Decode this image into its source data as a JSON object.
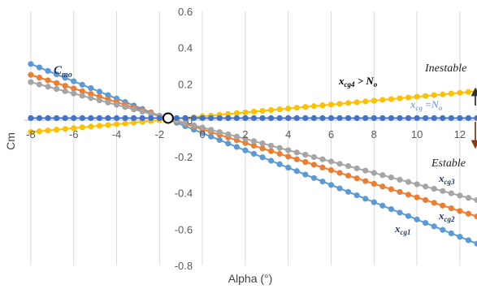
{
  "chart_data": {
    "type": "line",
    "xlabel": "Alpha (°)",
    "ylabel": "Cm",
    "xlim": [
      -8.3,
      12.8
    ],
    "ylim": [
      -0.8,
      0.6
    ],
    "x_ticks": [
      -8,
      -6,
      -4,
      -2,
      0,
      2,
      4,
      6,
      8,
      10,
      12
    ],
    "y_ticks": [
      -0.8,
      -0.6,
      -0.4,
      -0.2,
      0,
      0.2,
      0.4,
      0.6
    ],
    "x_tick_labels": [
      "-8",
      "-6",
      "-4",
      "-2",
      "0",
      "2",
      "4",
      "6",
      "8",
      "10",
      "12"
    ],
    "y_tick_labels": [
      "-0.8",
      "-0.6",
      "-0.4",
      "-0.2",
      "0",
      "0.2",
      "0.4",
      "0.6"
    ],
    "gridlines": "vertical",
    "marker_spacing_deg": 0.4,
    "x_range": [
      -8.0,
      12.8
    ],
    "series": [
      {
        "name": "x_cg1",
        "color": "#5B9BD5",
        "x": [
          -8,
          12.8
        ],
        "y": [
          0.31,
          -0.68
        ]
      },
      {
        "name": "x_cg2",
        "color": "#ED7D31",
        "x": [
          -8,
          12.8
        ],
        "y": [
          0.25,
          -0.53
        ]
      },
      {
        "name": "x_cg3",
        "color": "#A5A5A5",
        "x": [
          -8,
          12.8
        ],
        "y": [
          0.21,
          -0.44
        ]
      },
      {
        "name": "x_cg4",
        "color": "#FFC000",
        "x": [
          -8,
          12.8
        ],
        "y": [
          -0.065,
          0.16
        ]
      },
      {
        "name": "x_cg=N_o",
        "color": "#4472C4",
        "x": [
          -8,
          12.8
        ],
        "y": [
          0.012,
          0.012
        ]
      }
    ],
    "trim_point": {
      "x": -1.6,
      "y": 0.012
    },
    "annotations": {
      "cmo": {
        "main": "C",
        "sub": "mo"
      },
      "xcg4": {
        "main": "x",
        "sub": "cg4",
        "tail": " > N",
        "tail_sub": "o"
      },
      "xcgN": {
        "main": "x",
        "sub": "cg",
        "tail": " =N",
        "tail_sub": "o"
      },
      "xcg3": {
        "main": "x",
        "sub": "cg3"
      },
      "xcg2": {
        "main": "x",
        "sub": "cg2"
      },
      "xcg1": {
        "main": "x",
        "sub": "cg1"
      },
      "inestable": "Inestable",
      "estable": "Estable"
    }
  }
}
